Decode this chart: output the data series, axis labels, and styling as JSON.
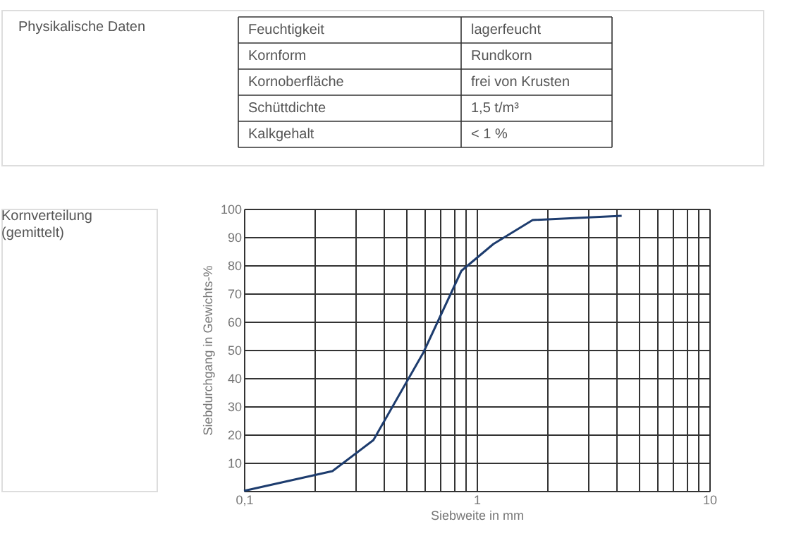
{
  "chart_data": {
    "type": "line",
    "xlabel": "Siebweite in mm",
    "ylabel": "Siebdurchgang in Gewichts-%",
    "annotations": [
      "Physikalische Daten",
      "Feuchtigkeit",
      "lagerfeucht",
      "Kornform",
      "Rundkorn",
      "Kornoberfläche",
      "frei von Krusten",
      "Schüttdichte",
      "1,5 t/m³",
      "Kalkgehalt",
      "< 1 %",
      "Kornverteilung\n(gemittelt)"
    ],
    "x": [
      0.1,
      0.24,
      0.36,
      0.59,
      0.86,
      1.18,
      1.74,
      4.2
    ],
    "series": [
      {
        "color": "#1d3c6e",
        "values": [
          0,
          7,
          18,
          49,
          78,
          87.5,
          96,
          97.5
        ]
      }
    ],
    "log": "x",
    "xlim": [
      0.1,
      10
    ],
    "ylim": [
      0,
      100
    ],
    "xticks": [
      {
        "value": 0.1,
        "label": "0,1"
      },
      {
        "value": 0.2,
        "label": null
      },
      {
        "value": 0.3,
        "label": null
      },
      {
        "value": 0.4,
        "label": null
      },
      {
        "value": 0.5,
        "label": null
      },
      {
        "value": 0.6,
        "label": null
      },
      {
        "value": 0.7,
        "label": null
      },
      {
        "value": 0.8,
        "label": null
      },
      {
        "value": 0.9,
        "label": null
      },
      1,
      {
        "value": 2,
        "label": null
      },
      {
        "value": 3,
        "label": null
      },
      {
        "value": 4,
        "label": null
      },
      {
        "value": 5,
        "label": null
      },
      {
        "value": 6,
        "label": null
      },
      {
        "value": 7,
        "label": null
      },
      {
        "value": 8,
        "label": null
      },
      {
        "value": 9,
        "label": null
      },
      10
    ],
    "yticks": [
      10,
      20,
      30,
      40,
      50,
      60,
      70,
      80,
      90,
      100
    ],
    "grid": true,
    "marker": "none",
    "line_style": "solid"
  }
}
